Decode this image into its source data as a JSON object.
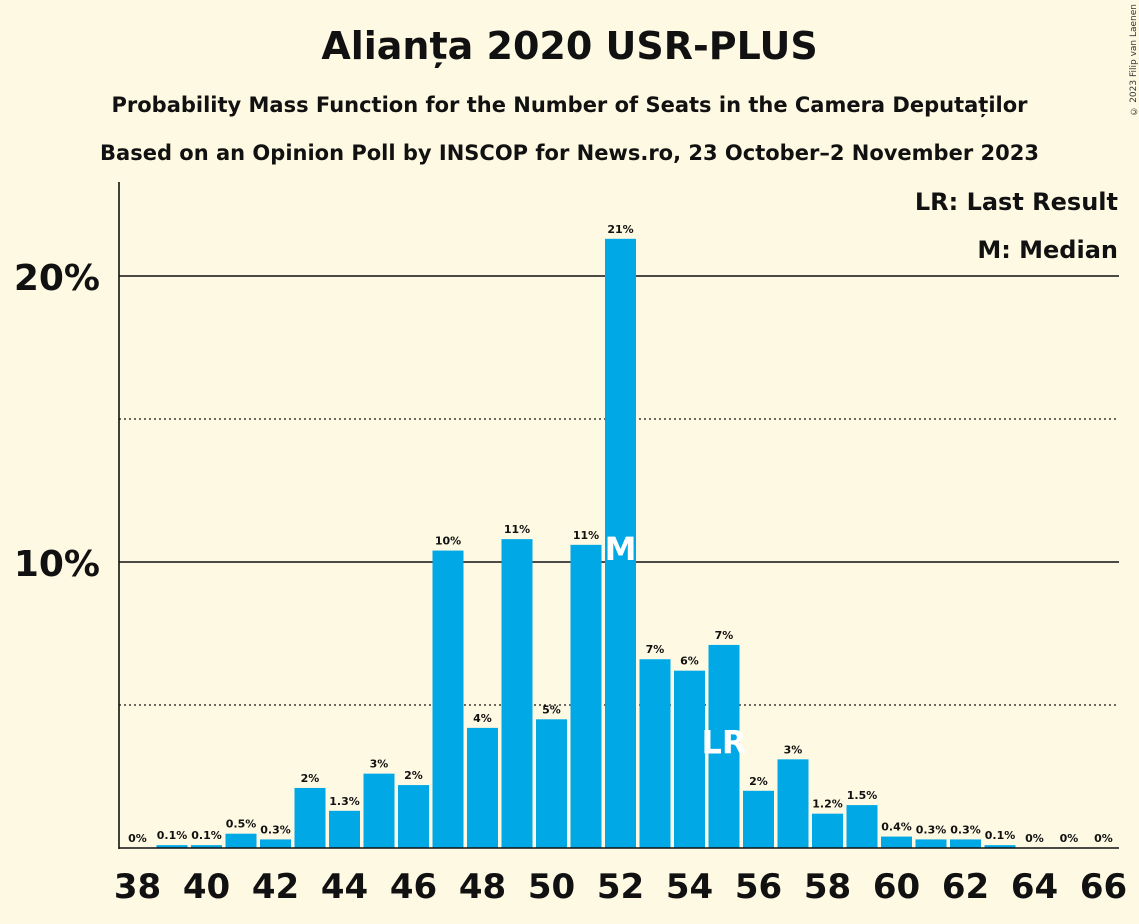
{
  "title": "Alianța 2020 USR-PLUS",
  "subtitle1": "Probability Mass Function for the Number of Seats in the Camera Deputaților",
  "subtitle2": "Based on an Opinion Poll by INSCOP for News.ro, 23 October–2 November 2023",
  "copyright": "© 2023 Filip van Laenen",
  "colors": {
    "background": "#FEF9E3",
    "bar": "#00A8E6",
    "text": "#111111",
    "marker_text": "#FFFFFF"
  },
  "chart_data": {
    "type": "bar",
    "x": [
      38,
      39,
      40,
      41,
      42,
      43,
      44,
      45,
      46,
      47,
      48,
      49,
      50,
      51,
      52,
      53,
      54,
      55,
      56,
      57,
      58,
      59,
      60,
      61,
      62,
      63,
      64,
      65,
      66
    ],
    "values": [
      0,
      0.1,
      0.1,
      0.5,
      0.3,
      2.1,
      1.3,
      2.6,
      2.2,
      10.4,
      4.2,
      10.8,
      4.5,
      10.6,
      21.3,
      6.6,
      6.2,
      7.1,
      2.0,
      3.1,
      1.2,
      1.5,
      0.4,
      0.3,
      0.3,
      0.1,
      0,
      0,
      0
    ],
    "data_labels": [
      "0%",
      "0.1%",
      "0.1%",
      "0.5%",
      "0.3%",
      "2%",
      "1.3%",
      "3%",
      "2%",
      "10%",
      "4%",
      "11%",
      "5%",
      "11%",
      "21%",
      "7%",
      "6%",
      "7%",
      "2%",
      "3%",
      "1.2%",
      "1.5%",
      "0.4%",
      "0.3%",
      "0.3%",
      "0.1%",
      "0%",
      "0%",
      "0%"
    ],
    "x_tick_labels": [
      "38",
      "40",
      "42",
      "44",
      "46",
      "48",
      "50",
      "52",
      "54",
      "56",
      "58",
      "60",
      "62",
      "64",
      "66"
    ],
    "y_tick_labels": [
      {
        "value": 10,
        "label": "10%"
      },
      {
        "value": 20,
        "label": "20%"
      }
    ],
    "gridlines": {
      "solid": [
        10,
        20
      ],
      "dotted": [
        5,
        15
      ]
    },
    "ylim": [
      0,
      23.3
    ],
    "xlim": [
      37.5,
      66.5
    ],
    "median": {
      "x": 52,
      "marker": "M"
    },
    "last_result": {
      "x": 55,
      "marker": "LR"
    },
    "legend": {
      "placement": "top-right",
      "items": [
        "LR: Last Result",
        "M: Median"
      ]
    }
  }
}
